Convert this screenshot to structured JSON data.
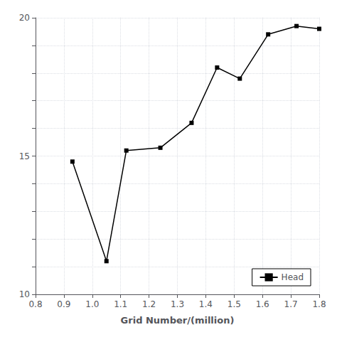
{
  "chart_data": {
    "type": "line",
    "xlabel": "Grid Number/(million)",
    "x": [
      0.93,
      1.05,
      1.12,
      1.24,
      1.35,
      1.44,
      1.52,
      1.62,
      1.72,
      1.8
    ],
    "series": [
      {
        "name": "Head",
        "color": "#000000",
        "marker": "square",
        "values": [
          14.8,
          11.2,
          15.2,
          15.3,
          16.2,
          18.2,
          17.8,
          19.4,
          19.7,
          19.6
        ]
      }
    ],
    "xlim": [
      0.8,
      1.8
    ],
    "ylim": [
      10,
      20
    ],
    "xticks": [
      0.8,
      0.9,
      {
        "value": 1.0,
        "label": "1.0"
      },
      1.1,
      1.2,
      1.3,
      1.4,
      1.5,
      1.6,
      1.7,
      1.8
    ],
    "yticks": [
      10,
      {
        "value": 11,
        "label": ""
      },
      {
        "value": 12,
        "label": ""
      },
      {
        "value": 13,
        "label": ""
      },
      {
        "value": 14,
        "label": ""
      },
      15,
      {
        "value": 16,
        "label": ""
      },
      {
        "value": 17,
        "label": ""
      },
      {
        "value": 18,
        "label": ""
      },
      {
        "value": 19,
        "label": ""
      },
      20
    ],
    "grid": true,
    "legend": "lower right"
  }
}
